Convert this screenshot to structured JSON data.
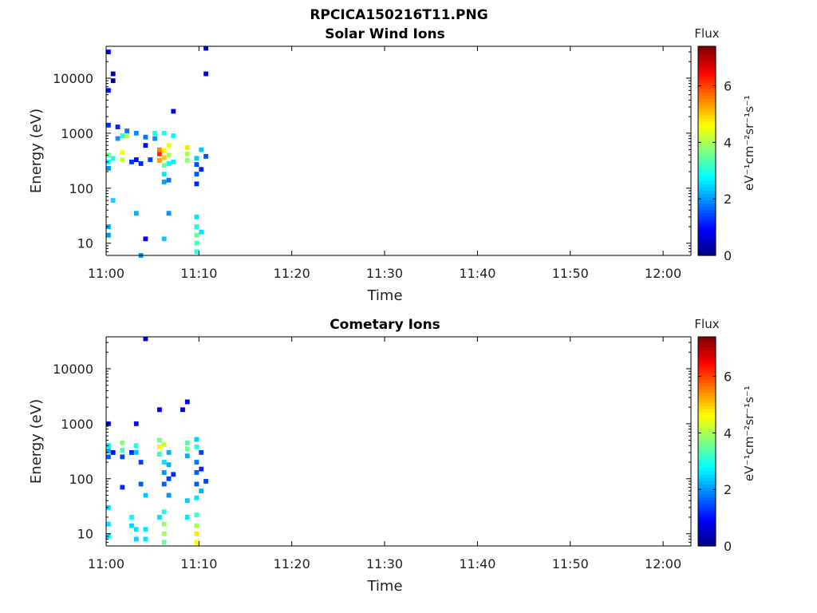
{
  "figure_title": "RPCICA150216T11.PNG",
  "colormap": [
    "#00007f",
    "#0000ff",
    "#007fff",
    "#00ffff",
    "#7fff7f",
    "#ffff00",
    "#ff7f00",
    "#ff0000",
    "#7f0000"
  ],
  "colorbar": {
    "title": "Flux",
    "label": "eV⁻¹cm⁻²sr⁻¹s⁻¹",
    "ticks": [
      "0",
      "2",
      "4",
      "6"
    ],
    "range": [
      0,
      7.4
    ]
  },
  "chart_data": [
    {
      "type": "heatmap",
      "title": "Solar Wind Ions",
      "xlabel": "Time",
      "ylabel": "Energy (eV)",
      "xlim": [
        "11:00",
        "12:03"
      ],
      "xticks": [
        "11:00",
        "11:10",
        "11:20",
        "11:30",
        "11:40",
        "11:50",
        "12:00"
      ],
      "ylim": [
        6,
        38000
      ],
      "yscale": "log",
      "yticks": [
        "10",
        "100",
        "1000",
        "10000"
      ],
      "cells": [
        {
          "t": "11:00.0",
          "e": 400,
          "v": 3.5
        },
        {
          "t": "11:00.0",
          "e": 300,
          "v": 2.8
        },
        {
          "t": "11:00.0",
          "e": 230,
          "v": 2.0
        },
        {
          "t": "11:00.0",
          "e": 1400,
          "v": 1.2
        },
        {
          "t": "11:00.0",
          "e": 20,
          "v": 2.2
        },
        {
          "t": "11:00.0",
          "e": 14,
          "v": 2.0
        },
        {
          "t": "11:00.0",
          "e": 30000,
          "v": 1.0
        },
        {
          "t": "11:00.0",
          "e": 6000,
          "v": 1.0
        },
        {
          "t": "11:00.5",
          "e": 350,
          "v": 3.0
        },
        {
          "t": "11:00.5",
          "e": 12000,
          "v": 0.4
        },
        {
          "t": "11:00.5",
          "e": 9000,
          "v": 0.3
        },
        {
          "t": "11:00.5",
          "e": 60,
          "v": 2.5
        },
        {
          "t": "11:01.0",
          "e": 800,
          "v": 2.0
        },
        {
          "t": "11:01.0",
          "e": 1300,
          "v": 1.2
        },
        {
          "t": "11:01.5",
          "e": 450,
          "v": 4.5
        },
        {
          "t": "11:01.5",
          "e": 330,
          "v": 4.2
        },
        {
          "t": "11:01.5",
          "e": 900,
          "v": 3.0
        },
        {
          "t": "11:02.0",
          "e": 900,
          "v": 4.0
        },
        {
          "t": "11:02.0",
          "e": 1100,
          "v": 1.8
        },
        {
          "t": "11:02.5",
          "e": 300,
          "v": 1.3
        },
        {
          "t": "11:03.0",
          "e": 1000,
          "v": 2.0
        },
        {
          "t": "11:03.0",
          "e": 330,
          "v": 1.0
        },
        {
          "t": "11:03.0",
          "e": 35,
          "v": 2.2
        },
        {
          "t": "11:03.5",
          "e": 280,
          "v": 1.2
        },
        {
          "t": "11:03.5",
          "e": 6,
          "v": 2.0
        },
        {
          "t": "11:04.0",
          "e": 850,
          "v": 1.8
        },
        {
          "t": "11:04.0",
          "e": 600,
          "v": 1.0
        },
        {
          "t": "11:04.0",
          "e": 12,
          "v": 1.0
        },
        {
          "t": "11:04.5",
          "e": 330,
          "v": 1.4
        },
        {
          "t": "11:05.0",
          "e": 1000,
          "v": 3.0
        },
        {
          "t": "11:05.0",
          "e": 800,
          "v": 2.0
        },
        {
          "t": "11:05.5",
          "e": 420,
          "v": 6.2
        },
        {
          "t": "11:05.5",
          "e": 320,
          "v": 5.3
        },
        {
          "t": "11:05.5",
          "e": 500,
          "v": 5.5
        },
        {
          "t": "11:06.0",
          "e": 480,
          "v": 4.7
        },
        {
          "t": "11:06.0",
          "e": 360,
          "v": 5.0
        },
        {
          "t": "11:06.0",
          "e": 260,
          "v": 3.6
        },
        {
          "t": "11:06.0",
          "e": 180,
          "v": 2.6
        },
        {
          "t": "11:06.0",
          "e": 130,
          "v": 2.1
        },
        {
          "t": "11:06.0",
          "e": 1000,
          "v": 3.0
        },
        {
          "t": "11:06.0",
          "e": 12,
          "v": 2.4
        },
        {
          "t": "11:06.5",
          "e": 600,
          "v": 4.5
        },
        {
          "t": "11:06.5",
          "e": 400,
          "v": 4.0
        },
        {
          "t": "11:06.5",
          "e": 280,
          "v": 2.8
        },
        {
          "t": "11:06.5",
          "e": 140,
          "v": 1.8
        },
        {
          "t": "11:06.5",
          "e": 35,
          "v": 2.0
        },
        {
          "t": "11:07.0",
          "e": 300,
          "v": 2.7
        },
        {
          "t": "11:07.0",
          "e": 900,
          "v": 2.8
        },
        {
          "t": "11:07.0",
          "e": 2500,
          "v": 0.8
        },
        {
          "t": "11:08.5",
          "e": 550,
          "v": 4.8
        },
        {
          "t": "11:08.5",
          "e": 420,
          "v": 4.0
        },
        {
          "t": "11:08.5",
          "e": 320,
          "v": 3.8
        },
        {
          "t": "11:09.5",
          "e": 350,
          "v": 2.4
        },
        {
          "t": "11:09.5",
          "e": 270,
          "v": 1.5
        },
        {
          "t": "11:09.5",
          "e": 180,
          "v": 1.6
        },
        {
          "t": "11:09.5",
          "e": 120,
          "v": 1.2
        },
        {
          "t": "11:09.5",
          "e": 30,
          "v": 2.6
        },
        {
          "t": "11:09.5",
          "e": 20,
          "v": 3.0
        },
        {
          "t": "11:09.5",
          "e": 14,
          "v": 3.5
        },
        {
          "t": "11:09.5",
          "e": 10,
          "v": 3.4
        },
        {
          "t": "11:09.5",
          "e": 7,
          "v": 3.0
        },
        {
          "t": "11:10.0",
          "e": 500,
          "v": 2.4
        },
        {
          "t": "11:10.0",
          "e": 16,
          "v": 2.6
        },
        {
          "t": "11:10.0",
          "e": 220,
          "v": 1.2
        },
        {
          "t": "11:10.5",
          "e": 380,
          "v": 1.5
        },
        {
          "t": "11:10.5",
          "e": 35000,
          "v": 0.6
        },
        {
          "t": "11:10.5",
          "e": 12000,
          "v": 0.8
        }
      ]
    },
    {
      "type": "heatmap",
      "title": "Cometary Ions",
      "xlabel": "Time",
      "ylabel": "Energy (eV)",
      "xlim": [
        "11:00",
        "12:03"
      ],
      "xticks": [
        "11:00",
        "11:10",
        "11:20",
        "11:30",
        "11:40",
        "11:50",
        "12:00"
      ],
      "ylim": [
        6,
        38000
      ],
      "yscale": "log",
      "yticks": [
        "10",
        "100",
        "1000",
        "10000"
      ],
      "cells": [
        {
          "t": "11:00.0",
          "e": 400,
          "v": 2.6
        },
        {
          "t": "11:00.0",
          "e": 320,
          "v": 2.2
        },
        {
          "t": "11:00.0",
          "e": 250,
          "v": 1.6
        },
        {
          "t": "11:00.0",
          "e": 1000,
          "v": 1.0
        },
        {
          "t": "11:00.0",
          "e": 30,
          "v": 2.6
        },
        {
          "t": "11:00.0",
          "e": 15,
          "v": 2.6
        },
        {
          "t": "11:00.0",
          "e": 9,
          "v": 2.6
        },
        {
          "t": "11:00.5",
          "e": 300,
          "v": 1.0
        },
        {
          "t": "11:01.5",
          "e": 450,
          "v": 3.8
        },
        {
          "t": "11:01.5",
          "e": 330,
          "v": 3.2
        },
        {
          "t": "11:01.5",
          "e": 250,
          "v": 1.4
        },
        {
          "t": "11:01.5",
          "e": 70,
          "v": 1.2
        },
        {
          "t": "11:02.5",
          "e": 300,
          "v": 1.2
        },
        {
          "t": "11:02.5",
          "e": 20,
          "v": 2.8
        },
        {
          "t": "11:02.5",
          "e": 14,
          "v": 2.5
        },
        {
          "t": "11:03.0",
          "e": 1000,
          "v": 1.0
        },
        {
          "t": "11:03.0",
          "e": 400,
          "v": 3.0
        },
        {
          "t": "11:03.0",
          "e": 300,
          "v": 2.4
        },
        {
          "t": "11:03.0",
          "e": 12,
          "v": 2.6
        },
        {
          "t": "11:03.0",
          "e": 8,
          "v": 2.5
        },
        {
          "t": "11:03.5",
          "e": 200,
          "v": 1.4
        },
        {
          "t": "11:03.5",
          "e": 80,
          "v": 1.6
        },
        {
          "t": "11:04.0",
          "e": 35000,
          "v": 0.6
        },
        {
          "t": "11:04.0",
          "e": 12,
          "v": 2.6
        },
        {
          "t": "11:04.0",
          "e": 8,
          "v": 2.6
        },
        {
          "t": "11:04.0",
          "e": 50,
          "v": 2.4
        },
        {
          "t": "11:05.5",
          "e": 500,
          "v": 3.6
        },
        {
          "t": "11:05.5",
          "e": 380,
          "v": 4.7
        },
        {
          "t": "11:05.5",
          "e": 280,
          "v": 3.2
        },
        {
          "t": "11:05.5",
          "e": 1800,
          "v": 0.8
        },
        {
          "t": "11:05.5",
          "e": 20,
          "v": 2.6
        },
        {
          "t": "11:06.0",
          "e": 420,
          "v": 4.2
        },
        {
          "t": "11:06.0",
          "e": 200,
          "v": 2.6
        },
        {
          "t": "11:06.0",
          "e": 130,
          "v": 2.0
        },
        {
          "t": "11:06.0",
          "e": 80,
          "v": 1.6
        },
        {
          "t": "11:06.0",
          "e": 25,
          "v": 3.0
        },
        {
          "t": "11:06.0",
          "e": 15,
          "v": 3.8
        },
        {
          "t": "11:06.0",
          "e": 10,
          "v": 4.0
        },
        {
          "t": "11:06.0",
          "e": 7,
          "v": 3.5
        },
        {
          "t": "11:06.5",
          "e": 300,
          "v": 2.2
        },
        {
          "t": "11:06.5",
          "e": 180,
          "v": 2.2
        },
        {
          "t": "11:06.5",
          "e": 100,
          "v": 1.4
        },
        {
          "t": "11:06.5",
          "e": 50,
          "v": 2.0
        },
        {
          "t": "11:07.0",
          "e": 120,
          "v": 1.2
        },
        {
          "t": "11:08.0",
          "e": 1800,
          "v": 0.7
        },
        {
          "t": "11:08.5",
          "e": 2500,
          "v": 0.8
        },
        {
          "t": "11:08.5",
          "e": 450,
          "v": 3.4
        },
        {
          "t": "11:08.5",
          "e": 350,
          "v": 3.6
        },
        {
          "t": "11:08.5",
          "e": 260,
          "v": 2.2
        },
        {
          "t": "11:08.5",
          "e": 40,
          "v": 2.4
        },
        {
          "t": "11:08.5",
          "e": 20,
          "v": 2.6
        },
        {
          "t": "11:09.5",
          "e": 520,
          "v": 2.4
        },
        {
          "t": "11:09.5",
          "e": 380,
          "v": 3.0
        },
        {
          "t": "11:09.5",
          "e": 200,
          "v": 1.8
        },
        {
          "t": "11:09.5",
          "e": 130,
          "v": 1.6
        },
        {
          "t": "11:09.5",
          "e": 80,
          "v": 1.6
        },
        {
          "t": "11:09.5",
          "e": 45,
          "v": 2.6
        },
        {
          "t": "11:09.5",
          "e": 22,
          "v": 3.2
        },
        {
          "t": "11:09.5",
          "e": 14,
          "v": 4.0
        },
        {
          "t": "11:09.5",
          "e": 10,
          "v": 4.8
        },
        {
          "t": "11:09.5",
          "e": 7,
          "v": 4.6
        },
        {
          "t": "11:10.0",
          "e": 300,
          "v": 1.4
        },
        {
          "t": "11:10.0",
          "e": 150,
          "v": 1.2
        },
        {
          "t": "11:10.0",
          "e": 60,
          "v": 2.2
        },
        {
          "t": "11:10.5",
          "e": 90,
          "v": 1.4
        }
      ]
    }
  ]
}
